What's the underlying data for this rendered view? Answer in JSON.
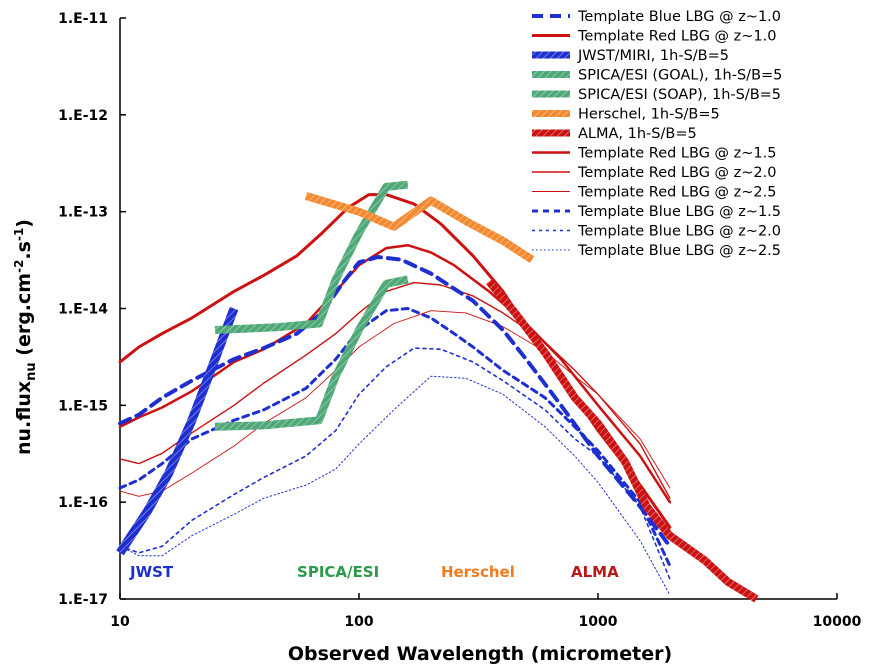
{
  "chart_data": {
    "type": "line",
    "title": "",
    "xlabel": "Observed Wavelength (micrometer)",
    "ylabel": "nu.flux_nu (erg.cm^-2.s^-1)",
    "ylabel_main": "nu.flux",
    "ylabel_sub": "nu",
    "ylabel_units_open": " (erg.cm",
    "ylabel_exp1": "-2",
    "ylabel_mid": ".s",
    "ylabel_exp2": "-1",
    "ylabel_close": ")",
    "x_scale": "log",
    "y_scale": "log",
    "xlim": [
      10,
      10000
    ],
    "ylim": [
      1e-17,
      1e-11
    ],
    "x_ticks": [
      {
        "value": 10,
        "label": "10"
      },
      {
        "value": 100,
        "label": "100"
      },
      {
        "value": 1000,
        "label": "1000"
      },
      {
        "value": 10000,
        "label": "10000"
      }
    ],
    "y_ticks": [
      {
        "value": 1e-11,
        "label": "1.E-11"
      },
      {
        "value": 1e-12,
        "label": "1.E-12"
      },
      {
        "value": 1e-13,
        "label": "1.E-13"
      },
      {
        "value": 1e-14,
        "label": "1.E-14"
      },
      {
        "value": 1e-15,
        "label": "1.E-15"
      },
      {
        "value": 1e-16,
        "label": "1.E-16"
      },
      {
        "value": 1e-17,
        "label": "1.E-17"
      }
    ],
    "grid": false,
    "legend_position": "top-right",
    "series": [
      {
        "name": "Template Blue LBG @ z~1.0",
        "color": "#1e2fd0",
        "width": 4,
        "dash": "11,7",
        "points": [
          [
            10,
            6.5e-16
          ],
          [
            12,
            8e-16
          ],
          [
            15,
            1.2e-15
          ],
          [
            20,
            1.8e-15
          ],
          [
            30,
            3e-15
          ],
          [
            40,
            3.9e-15
          ],
          [
            55,
            5.5e-15
          ],
          [
            70,
            9e-15
          ],
          [
            85,
            1.8e-14
          ],
          [
            100,
            3e-14
          ],
          [
            120,
            3.4e-14
          ],
          [
            150,
            3.2e-14
          ],
          [
            200,
            2.3e-14
          ],
          [
            250,
            1.6e-14
          ],
          [
            300,
            1.2e-14
          ],
          [
            400,
            6e-15
          ],
          [
            500,
            3e-15
          ],
          [
            700,
            1e-15
          ],
          [
            1000,
            3e-16
          ],
          [
            1500,
            9e-17
          ],
          [
            2000,
            3.5e-17
          ]
        ]
      },
      {
        "name": "Template Red LBG @ z~1.0",
        "color": "#cc1111",
        "width": 3,
        "dash": "",
        "points": [
          [
            10,
            2.8e-15
          ],
          [
            12,
            4e-15
          ],
          [
            15,
            5.5e-15
          ],
          [
            20,
            8e-15
          ],
          [
            30,
            1.5e-14
          ],
          [
            40,
            2.2e-14
          ],
          [
            55,
            3.5e-14
          ],
          [
            70,
            6e-14
          ],
          [
            90,
            1.1e-13
          ],
          [
            110,
            1.5e-13
          ],
          [
            130,
            1.5e-13
          ],
          [
            170,
            1.2e-13
          ],
          [
            220,
            7.5e-14
          ],
          [
            300,
            3.5e-14
          ],
          [
            400,
            1.5e-14
          ],
          [
            500,
            6.5e-15
          ],
          [
            700,
            2e-15
          ],
          [
            1000,
            5.5e-16
          ],
          [
            1500,
            1.5e-16
          ],
          [
            2000,
            5.5e-17
          ]
        ]
      },
      {
        "name": "JWST/MIRI, 1h-S/B=5",
        "color": "#1e2fd0",
        "width": 9,
        "dash": "",
        "hatched": true,
        "points": [
          [
            10,
            3e-17
          ],
          [
            13,
            8e-17
          ],
          [
            16,
            2e-16
          ],
          [
            20,
            7e-16
          ],
          [
            25,
            3e-15
          ],
          [
            30,
            1e-14
          ]
        ]
      },
      {
        "name": "SPICA/ESI (GOAL), 1h-S/B=5",
        "color": "#4fa878",
        "width": 8,
        "dash": "",
        "hatched": true,
        "points": [
          [
            25,
            6e-16
          ],
          [
            40,
            6.2e-16
          ],
          [
            68,
            7e-16
          ],
          [
            80,
            2e-15
          ],
          [
            100,
            6e-15
          ],
          [
            130,
            1.8e-14
          ],
          [
            160,
            2e-14
          ]
        ]
      },
      {
        "name": "SPICA/ESI (SOAP), 1h-S/B=5",
        "color": "#4fa878",
        "width": 8,
        "dash": "",
        "hatched": true,
        "points": [
          [
            25,
            6e-15
          ],
          [
            45,
            6.4e-15
          ],
          [
            68,
            7e-15
          ],
          [
            80,
            2e-14
          ],
          [
            100,
            6e-14
          ],
          [
            130,
            1.8e-13
          ],
          [
            160,
            1.9e-13
          ]
        ]
      },
      {
        "name": "Herschel, 1h-S/B=5",
        "color": "#f38a30",
        "width": 8,
        "dash": "",
        "hatched": true,
        "points": [
          [
            60,
            1.45e-13
          ],
          [
            100,
            1e-13
          ],
          [
            140,
            7e-14
          ],
          [
            200,
            1.3e-13
          ],
          [
            280,
            8e-14
          ],
          [
            400,
            5e-14
          ],
          [
            530,
            3.2e-14
          ]
        ]
      },
      {
        "name": "ALMA, 1h-S/B=5",
        "color": "#cc1111",
        "width": 8,
        "dash": "",
        "hatched": true,
        "points": [
          [
            350,
            1.9e-14
          ],
          [
            450,
            9e-15
          ],
          [
            600,
            3.5e-15
          ],
          [
            800,
            1.2e-15
          ],
          [
            1000,
            6.5e-16
          ],
          [
            1300,
            2.6e-16
          ],
          [
            1600,
            9e-17
          ],
          [
            2000,
            4.5e-17
          ],
          [
            2800,
            2.5e-17
          ],
          [
            3500,
            1.5e-17
          ],
          [
            4600,
            1e-17
          ]
        ]
      },
      {
        "name": "Template Red LBG @ z~1.5",
        "color": "#cc1111",
        "width": 2.5,
        "dash": "",
        "points": [
          [
            10,
            6e-16
          ],
          [
            12,
            7.5e-16
          ],
          [
            15,
            9.5e-16
          ],
          [
            20,
            1.4e-15
          ],
          [
            30,
            2.8e-15
          ],
          [
            40,
            3.8e-15
          ],
          [
            60,
            7e-15
          ],
          [
            80,
            1.5e-14
          ],
          [
            100,
            2.8e-14
          ],
          [
            130,
            4.2e-14
          ],
          [
            160,
            4.5e-14
          ],
          [
            200,
            3.8e-14
          ],
          [
            250,
            2.8e-14
          ],
          [
            350,
            1.5e-14
          ],
          [
            500,
            7e-15
          ],
          [
            700,
            3e-15
          ],
          [
            1000,
            1e-15
          ],
          [
            1500,
            3e-16
          ],
          [
            2000,
            1e-16
          ]
        ]
      },
      {
        "name": "Template Red LBG @ z~2.0",
        "color": "#cc1111",
        "width": 1.4,
        "dash": "",
        "points": [
          [
            10,
            2.8e-16
          ],
          [
            12,
            2.5e-16
          ],
          [
            15,
            3.2e-16
          ],
          [
            20,
            5.2e-16
          ],
          [
            30,
            1e-15
          ],
          [
            40,
            1.7e-15
          ],
          [
            60,
            3.3e-15
          ],
          [
            80,
            5.5e-15
          ],
          [
            100,
            9e-15
          ],
          [
            130,
            1.5e-14
          ],
          [
            170,
            1.85e-14
          ],
          [
            220,
            1.75e-14
          ],
          [
            300,
            1.35e-14
          ],
          [
            400,
            9e-15
          ],
          [
            600,
            4.5e-15
          ],
          [
            800,
            2.3e-15
          ],
          [
            1000,
            1.3e-15
          ],
          [
            1500,
            4e-16
          ],
          [
            2000,
            1.1e-16
          ]
        ]
      },
      {
        "name": "Template Red LBG @ z~2.5",
        "color": "#cc1111",
        "width": 0.9,
        "dash": "",
        "points": [
          [
            10,
            1.3e-16
          ],
          [
            12,
            1.15e-16
          ],
          [
            15,
            1.3e-16
          ],
          [
            20,
            2e-16
          ],
          [
            30,
            3.8e-16
          ],
          [
            40,
            6.5e-16
          ],
          [
            60,
            1.2e-15
          ],
          [
            80,
            2.3e-15
          ],
          [
            100,
            4e-15
          ],
          [
            140,
            7e-15
          ],
          [
            200,
            9.5e-15
          ],
          [
            280,
            9e-15
          ],
          [
            400,
            6.5e-15
          ],
          [
            600,
            3.6e-15
          ],
          [
            800,
            2e-15
          ],
          [
            1000,
            1.3e-15
          ],
          [
            1500,
            4.5e-16
          ],
          [
            2000,
            1.4e-16
          ]
        ]
      },
      {
        "name": "Template Blue LBG @ z~1.5",
        "color": "#1e2fd0",
        "width": 3,
        "dash": "6,5",
        "points": [
          [
            10,
            1.4e-16
          ],
          [
            12,
            1.7e-16
          ],
          [
            15,
            2.5e-16
          ],
          [
            20,
            4.5e-16
          ],
          [
            30,
            7e-16
          ],
          [
            40,
            9e-16
          ],
          [
            60,
            1.5e-15
          ],
          [
            80,
            3e-15
          ],
          [
            100,
            6e-15
          ],
          [
            130,
            9.5e-15
          ],
          [
            160,
            1e-14
          ],
          [
            200,
            8e-15
          ],
          [
            250,
            5.5e-15
          ],
          [
            300,
            4e-15
          ],
          [
            400,
            2.3e-15
          ],
          [
            600,
            1.2e-15
          ],
          [
            800,
            6e-16
          ],
          [
            1000,
            3.4e-16
          ],
          [
            1500,
            1e-16
          ],
          [
            2000,
            2.2e-17
          ]
        ]
      },
      {
        "name": "Template Blue LBG @ z~2.0",
        "color": "#1e2fd0",
        "width": 1.6,
        "dash": "3,4",
        "points": [
          [
            10,
            3.5e-17
          ],
          [
            12,
            3e-17
          ],
          [
            15,
            3.5e-17
          ],
          [
            20,
            6.5e-17
          ],
          [
            30,
            1.2e-16
          ],
          [
            40,
            1.8e-16
          ],
          [
            60,
            3e-16
          ],
          [
            80,
            5.5e-16
          ],
          [
            100,
            1.3e-15
          ],
          [
            130,
            2.5e-15
          ],
          [
            170,
            3.9e-15
          ],
          [
            220,
            3.8e-15
          ],
          [
            300,
            2.8e-15
          ],
          [
            400,
            1.8e-15
          ],
          [
            600,
            9e-16
          ],
          [
            800,
            4.5e-16
          ],
          [
            1000,
            3e-16
          ],
          [
            1500,
            9e-17
          ],
          [
            2000,
            1.6e-17
          ]
        ]
      },
      {
        "name": "Template Blue LBG @ z~2.5",
        "color": "#1e2fd0",
        "width": 1,
        "dash": "1.5,2.5",
        "points": [
          [
            10,
            3.5e-17
          ],
          [
            12,
            2.8e-17
          ],
          [
            15,
            2.8e-17
          ],
          [
            20,
            4.5e-17
          ],
          [
            30,
            7.5e-17
          ],
          [
            40,
            1.1e-16
          ],
          [
            60,
            1.5e-16
          ],
          [
            80,
            2.2e-16
          ],
          [
            100,
            4e-16
          ],
          [
            140,
            9e-16
          ],
          [
            200,
            2e-15
          ],
          [
            280,
            1.9e-15
          ],
          [
            400,
            1.3e-15
          ],
          [
            600,
            6e-16
          ],
          [
            800,
            3e-16
          ],
          [
            1000,
            1.6e-16
          ],
          [
            1500,
            4e-17
          ],
          [
            2000,
            1.1e-17
          ]
        ]
      }
    ],
    "annotations": [
      {
        "text": "JWST",
        "color": "#1e2fd0",
        "x": 10,
        "y": 1.9e-17
      },
      {
        "text": "SPICA/ESI",
        "color": "#2c9a4c",
        "x": 50,
        "y": 1.9e-17
      },
      {
        "text": "Herschel",
        "color": "#f07c20",
        "x": 200,
        "y": 1.9e-17
      },
      {
        "text": "ALMA",
        "color": "#b81818",
        "x": 700,
        "y": 1.9e-17
      }
    ]
  }
}
